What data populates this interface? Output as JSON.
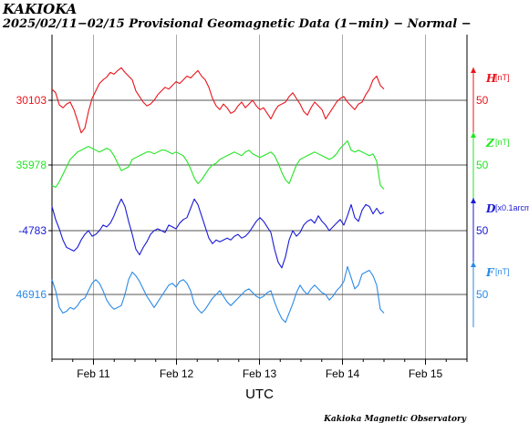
{
  "title": "KAKIOKA",
  "subtitle": "2025/02/11−02/15  Provisional Geomagnetic Data (1−min)  − Normal −",
  "footer": "Kakioka Magnetic Observatory",
  "colors": {
    "H": "#e8141c",
    "Z": "#22e622",
    "D": "#1a1ad6",
    "F": "#2a8ae8",
    "axis": "#000000",
    "grid": "#aaaaaa"
  },
  "chart_data": {
    "type": "line",
    "xlabel": "UTC",
    "x_ticks": [
      "Feb 11",
      "Feb 12",
      "Feb 13",
      "Feb 14",
      "Feb 15"
    ],
    "xlim_days": [
      10.5,
      15.5
    ],
    "data_end_day": 14.5,
    "grid": true,
    "series": [
      {
        "name": "H",
        "unit": "[nT]",
        "baseline": "30103",
        "scale_label": "50",
        "values": [
          12,
          8,
          -5,
          -8,
          -4,
          -2,
          -10,
          -22,
          -35,
          -30,
          -12,
          2,
          10,
          18,
          22,
          25,
          30,
          28,
          32,
          35,
          30,
          26,
          22,
          10,
          4,
          -2,
          -6,
          -4,
          0,
          6,
          10,
          14,
          12,
          16,
          20,
          18,
          22,
          26,
          24,
          28,
          32,
          26,
          22,
          14,
          2,
          -6,
          -10,
          -4,
          -8,
          -14,
          -12,
          -6,
          -2,
          -8,
          -4,
          0,
          -6,
          -10,
          -8,
          -14,
          -20,
          -12,
          -6,
          -4,
          -2,
          4,
          8,
          2,
          -4,
          -12,
          -16,
          -8,
          -2,
          -6,
          -10,
          -20,
          -14,
          -8,
          -2,
          2,
          4,
          -2,
          -6,
          -10,
          -4,
          -2,
          6,
          12,
          22,
          26,
          16,
          12
        ]
      },
      {
        "name": "Z",
        "unit": "[nT]",
        "baseline": "35978",
        "scale_label": "50",
        "values": [
          -22,
          -24,
          -18,
          -10,
          -2,
          6,
          10,
          14,
          16,
          18,
          20,
          18,
          16,
          14,
          16,
          18,
          16,
          10,
          2,
          -6,
          -4,
          -2,
          6,
          8,
          10,
          12,
          14,
          14,
          12,
          14,
          16,
          16,
          14,
          12,
          14,
          12,
          10,
          4,
          -4,
          -14,
          -20,
          -16,
          -10,
          -4,
          0,
          2,
          6,
          8,
          10,
          12,
          14,
          12,
          10,
          14,
          16,
          12,
          10,
          8,
          10,
          12,
          14,
          10,
          2,
          -8,
          -16,
          -20,
          -10,
          0,
          6,
          8,
          10,
          12,
          14,
          12,
          10,
          8,
          6,
          8,
          12,
          18,
          22,
          26,
          16,
          14,
          16,
          14,
          12,
          10,
          12,
          4,
          -22,
          -26
        ]
      },
      {
        "name": "D",
        "unit": "[x0.1arcmi",
        "baseline": "-4783",
        "scale_label": "50",
        "values": [
          26,
          12,
          2,
          -10,
          -18,
          -20,
          -22,
          -18,
          -10,
          -4,
          0,
          -6,
          -4,
          0,
          6,
          4,
          8,
          16,
          26,
          34,
          26,
          10,
          -4,
          -20,
          -26,
          -18,
          -12,
          -4,
          0,
          2,
          0,
          -2,
          6,
          4,
          2,
          8,
          12,
          14,
          24,
          34,
          28,
          16,
          4,
          -8,
          -14,
          -10,
          -12,
          -10,
          -8,
          -10,
          -6,
          -4,
          -8,
          -6,
          -2,
          4,
          10,
          14,
          10,
          4,
          -2,
          -20,
          -34,
          -40,
          -28,
          -10,
          0,
          -6,
          -2,
          6,
          10,
          12,
          8,
          16,
          10,
          6,
          0,
          4,
          8,
          12,
          6,
          16,
          28,
          14,
          10,
          22,
          28,
          26,
          18,
          24,
          18,
          20
        ]
      },
      {
        "name": "F",
        "unit": "[nT]",
        "baseline": "46916",
        "scale_label": "50",
        "values": [
          16,
          4,
          -14,
          -20,
          -18,
          -14,
          -16,
          -12,
          -6,
          -4,
          4,
          12,
          16,
          12,
          4,
          -6,
          -12,
          -16,
          -14,
          -12,
          0,
          16,
          24,
          20,
          14,
          6,
          -2,
          -8,
          -14,
          -8,
          -2,
          4,
          10,
          12,
          8,
          14,
          16,
          12,
          4,
          -10,
          -16,
          -20,
          -16,
          -10,
          -4,
          0,
          4,
          -2,
          -8,
          -12,
          -8,
          -4,
          0,
          4,
          6,
          2,
          -2,
          -4,
          -2,
          2,
          4,
          -8,
          -18,
          -26,
          -30,
          -20,
          -10,
          2,
          10,
          4,
          0,
          6,
          10,
          6,
          2,
          0,
          -6,
          -2,
          4,
          8,
          14,
          30,
          18,
          6,
          10,
          22,
          24,
          26,
          20,
          10,
          -16,
          -20
        ]
      }
    ]
  }
}
